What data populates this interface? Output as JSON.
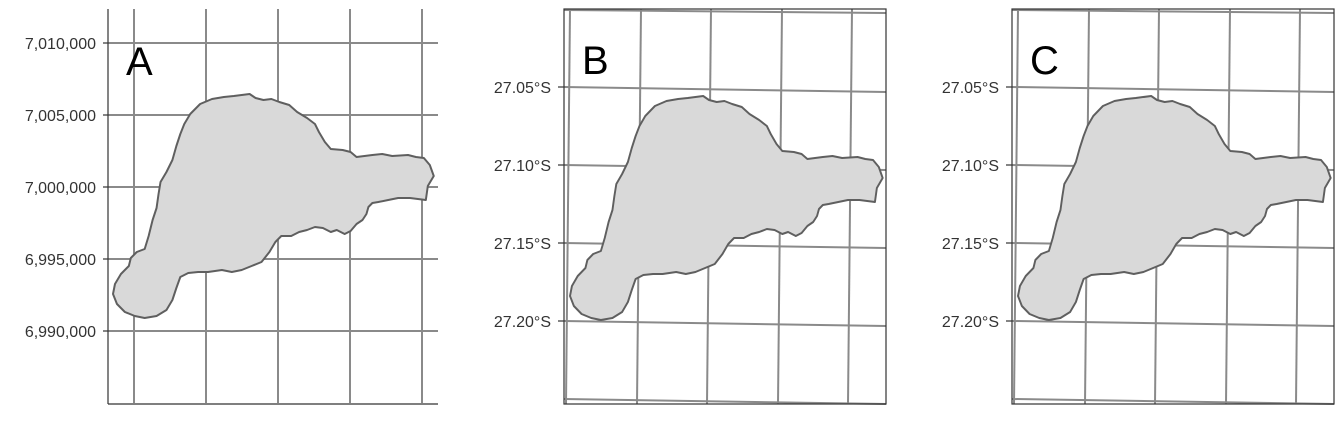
{
  "figure": {
    "panels": [
      {
        "tag": "A",
        "projection": "projected (UTM northing)",
        "y_ticks": [
          "7,010,000",
          "7,005,000",
          "7,000,000",
          "6,995,000",
          "6,990,000"
        ],
        "graticule": "straight",
        "fill_color": "#d9d9d9",
        "outline_color": "#5f5f5f"
      },
      {
        "tag": "B",
        "projection": "geographic graticule on projected map",
        "y_ticks": [
          "27.05°S",
          "27.10°S",
          "27.15°S",
          "27.20°S"
        ],
        "graticule": "slightly rotated",
        "fill_color": "#d9d9d9",
        "outline_color": "#5f5f5f"
      },
      {
        "tag": "C",
        "projection": "geographic graticule on projected map",
        "y_ticks": [
          "27.05°S",
          "27.10°S",
          "27.15°S",
          "27.20°S"
        ],
        "graticule": "slightly rotated",
        "fill_color": "#d9d9d9",
        "outline_color": "#5f5f5f"
      }
    ],
    "colors": {
      "grid": "#8a8a8a",
      "frame": "#333333",
      "text": "#333333",
      "background": "#ffffff"
    }
  }
}
